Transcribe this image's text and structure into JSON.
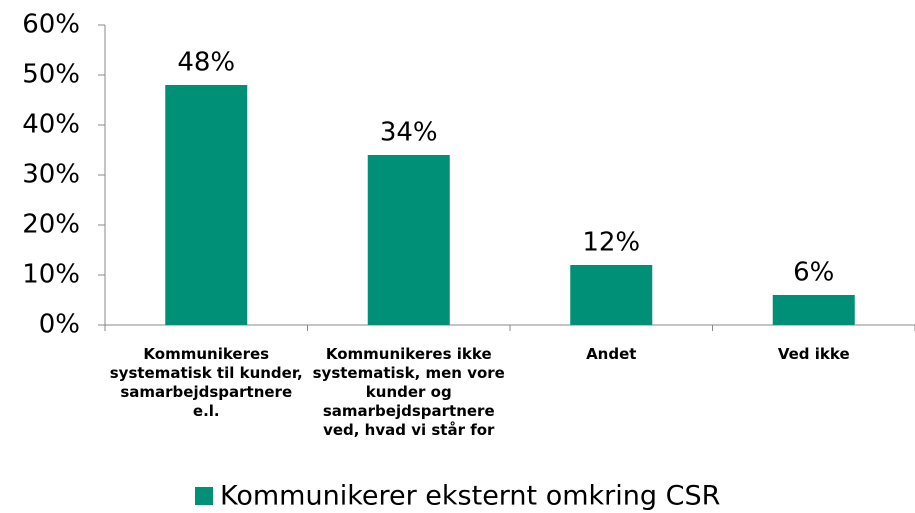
{
  "chart_data": {
    "type": "bar",
    "categories": [
      "Kommunikeres systematisk til kunder, samarbejdspartnere e.l.",
      "Kommunikeres ikke systematisk, men vore kunder og samarbejdspartnere ved, hvad vi står for",
      "Andet",
      "Ved ikke"
    ],
    "series": [
      {
        "name": "Kommunikerer eksternt omkring CSR",
        "color": "#009077",
        "values": [
          48,
          34,
          12,
          6
        ],
        "value_labels": [
          "48%",
          "34%",
          "12%",
          "6%"
        ]
      }
    ],
    "ylim": [
      0,
      60
    ],
    "yticks": [
      {
        "value": 0,
        "label": "0%"
      },
      {
        "value": 10,
        "label": "10%"
      },
      {
        "value": 20,
        "label": "20%"
      },
      {
        "value": 30,
        "label": "30%"
      },
      {
        "value": 40,
        "label": "40%"
      },
      {
        "value": 50,
        "label": "50%"
      },
      {
        "value": 60,
        "label": "60%"
      }
    ],
    "grid": false,
    "legend": "bottom"
  }
}
